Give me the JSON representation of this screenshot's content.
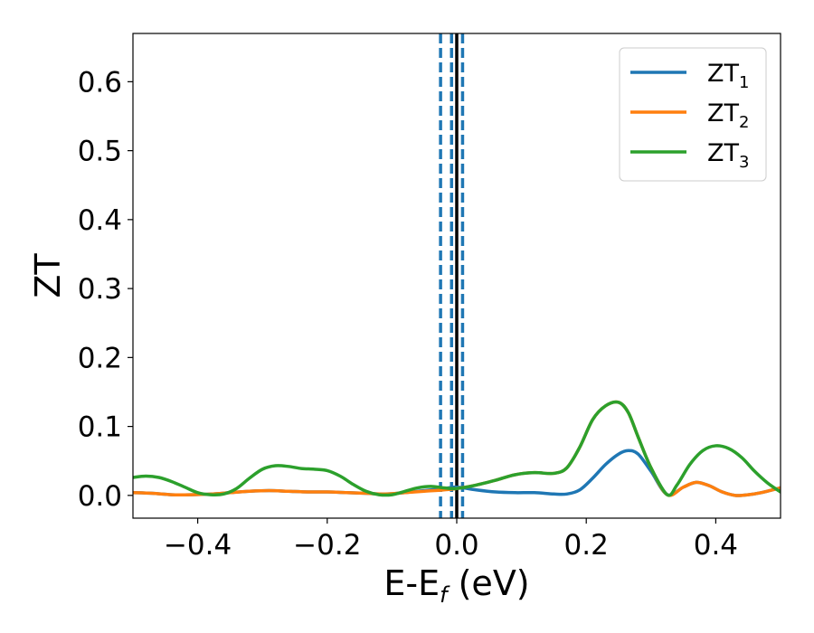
{
  "chart_data": {
    "type": "line",
    "title": "",
    "xlabel": {
      "main": "E-E",
      "sub": "f",
      "unit": " (eV)"
    },
    "ylabel": "ZT",
    "xlim": [
      -0.5,
      0.5
    ],
    "ylim": [
      -0.033,
      0.67
    ],
    "grid": false,
    "legend_position": "top-right",
    "x_ticks": [
      -0.4,
      -0.2,
      0.0,
      0.2,
      0.4
    ],
    "x_tick_labels": [
      "−0.4",
      "−0.2",
      "0.0",
      "0.2",
      "0.4"
    ],
    "y_ticks": [
      0.0,
      0.1,
      0.2,
      0.3,
      0.4,
      0.5,
      0.6
    ],
    "y_tick_labels": [
      "0.0",
      "0.1",
      "0.2",
      "0.3",
      "0.4",
      "0.5",
      "0.6"
    ],
    "vertical_lines": [
      {
        "x": -0.025,
        "style": "dashed",
        "color": "#1f77b4"
      },
      {
        "x": -0.008,
        "style": "dashed",
        "color": "#1f77b4"
      },
      {
        "x": 0.009,
        "style": "dashed",
        "color": "#1f77b4"
      },
      {
        "x": 0.0,
        "style": "solid",
        "color": "#000000"
      }
    ],
    "series": [
      {
        "name": "ZT",
        "sub": "1",
        "color": "#1f77b4",
        "x": [
          -0.5,
          -0.47,
          -0.44,
          -0.41,
          -0.38,
          -0.35,
          -0.32,
          -0.29,
          -0.26,
          -0.23,
          -0.2,
          -0.17,
          -0.14,
          -0.11,
          -0.08,
          -0.05,
          -0.02,
          0.0,
          0.03,
          0.06,
          0.09,
          0.12,
          0.15,
          0.17,
          0.19,
          0.21,
          0.23,
          0.25,
          0.265,
          0.28,
          0.3,
          0.325,
          0.35,
          0.37,
          0.39,
          0.41,
          0.43,
          0.45,
          0.47,
          0.5
        ],
        "y": [
          0.004,
          0.003,
          0.001,
          0.001,
          0.002,
          0.004,
          0.006,
          0.007,
          0.006,
          0.005,
          0.005,
          0.004,
          0.003,
          0.002,
          0.004,
          0.007,
          0.01,
          0.012,
          0.008,
          0.005,
          0.004,
          0.004,
          0.002,
          0.002,
          0.008,
          0.025,
          0.045,
          0.06,
          0.065,
          0.06,
          0.035,
          0.001,
          0.012,
          0.019,
          0.014,
          0.005,
          0.0,
          0.001,
          0.004,
          0.011
        ]
      },
      {
        "name": "ZT",
        "sub": "2",
        "color": "#ff7f0e",
        "x": [
          -0.5,
          -0.47,
          -0.44,
          -0.41,
          -0.38,
          -0.35,
          -0.32,
          -0.29,
          -0.26,
          -0.23,
          -0.2,
          -0.17,
          -0.14,
          -0.11,
          -0.08,
          -0.05,
          -0.02,
          0.0,
          0.03,
          0.06,
          0.09,
          0.12,
          0.15,
          0.17,
          0.19,
          0.21,
          0.23,
          0.25,
          0.265,
          0.28,
          0.3,
          0.325,
          0.35,
          0.37,
          0.39,
          0.41,
          0.43,
          0.45,
          0.47,
          0.5
        ],
        "y": [
          0.004,
          0.003,
          0.001,
          0.001,
          0.002,
          0.004,
          0.006,
          0.007,
          0.006,
          0.005,
          0.005,
          0.004,
          0.003,
          0.002,
          0.004,
          0.006,
          0.008,
          0.01,
          0.015,
          0.022,
          0.03,
          0.033,
          0.032,
          0.04,
          0.07,
          0.11,
          0.13,
          0.135,
          0.12,
          0.085,
          0.04,
          0.001,
          0.012,
          0.019,
          0.014,
          0.005,
          0.0,
          0.001,
          0.004,
          0.011
        ]
      },
      {
        "name": "ZT",
        "sub": "3",
        "color": "#2ca02c",
        "x": [
          -0.5,
          -0.48,
          -0.46,
          -0.44,
          -0.42,
          -0.4,
          -0.38,
          -0.36,
          -0.34,
          -0.32,
          -0.3,
          -0.28,
          -0.26,
          -0.24,
          -0.22,
          -0.2,
          -0.18,
          -0.16,
          -0.14,
          -0.12,
          -0.1,
          -0.08,
          -0.06,
          -0.04,
          -0.02,
          0.0,
          0.03,
          0.06,
          0.09,
          0.12,
          0.15,
          0.17,
          0.19,
          0.21,
          0.23,
          0.25,
          0.265,
          0.28,
          0.3,
          0.325,
          0.34,
          0.36,
          0.38,
          0.4,
          0.42,
          0.44,
          0.46,
          0.48,
          0.5
        ],
        "y": [
          0.026,
          0.028,
          0.026,
          0.02,
          0.012,
          0.004,
          0.001,
          0.002,
          0.01,
          0.025,
          0.038,
          0.043,
          0.042,
          0.039,
          0.038,
          0.036,
          0.028,
          0.016,
          0.006,
          0.001,
          0.001,
          0.006,
          0.011,
          0.013,
          0.011,
          0.01,
          0.015,
          0.022,
          0.03,
          0.033,
          0.032,
          0.04,
          0.07,
          0.11,
          0.13,
          0.135,
          0.12,
          0.085,
          0.04,
          0.001,
          0.015,
          0.045,
          0.065,
          0.072,
          0.068,
          0.055,
          0.035,
          0.018,
          0.005
        ]
      }
    ]
  }
}
